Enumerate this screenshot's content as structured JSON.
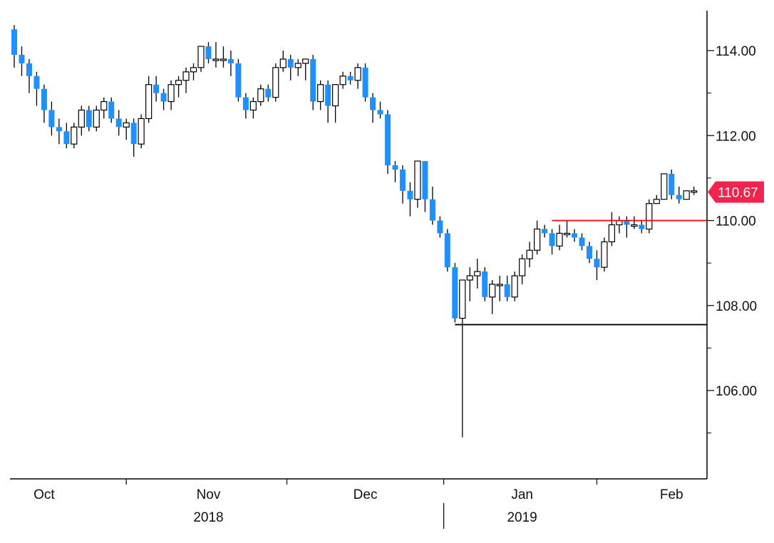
{
  "chart_data": {
    "type": "candlestick",
    "title": "",
    "ylim": [
      104.0,
      115.0
    ],
    "y_ticks": [
      "114.00",
      "112.00",
      "110.00",
      "108.00",
      "106.00"
    ],
    "y_tick_values": [
      114,
      112,
      110,
      108,
      106
    ],
    "x_month_labels": [
      "Oct",
      "Nov",
      "Dec",
      "Jan",
      "Feb"
    ],
    "x_month_positions": [
      4,
      26,
      47,
      68,
      88
    ],
    "x_year_labels": [
      "2018",
      "2019"
    ],
    "x_year_positions": [
      26,
      68
    ],
    "last_price": {
      "label": "110.67",
      "value": 110.67
    },
    "reference_lines": [
      {
        "name": "resistance",
        "value": 110.0,
        "from_index": 72,
        "color": "#e8000b"
      },
      {
        "name": "support",
        "value": 107.55,
        "from_index": 59,
        "color": "#000000"
      }
    ],
    "colors": {
      "up": "#ffffff",
      "down": "#1e90ff",
      "wick": "#000000",
      "last_price_bg": "#f0244d"
    },
    "candles": [
      [
        114.5,
        114.6,
        113.6,
        113.9
      ],
      [
        113.9,
        114.1,
        113.4,
        113.7
      ],
      [
        113.7,
        113.8,
        113.0,
        113.4
      ],
      [
        113.4,
        113.5,
        112.7,
        113.1
      ],
      [
        113.1,
        113.2,
        112.3,
        112.6
      ],
      [
        112.6,
        112.8,
        112.0,
        112.2
      ],
      [
        112.2,
        112.4,
        111.8,
        112.1
      ],
      [
        112.1,
        112.3,
        111.7,
        111.8
      ],
      [
        111.8,
        112.3,
        111.7,
        112.2
      ],
      [
        112.2,
        112.7,
        112.0,
        112.6
      ],
      [
        112.6,
        112.7,
        112.1,
        112.2
      ],
      [
        112.2,
        112.7,
        112.1,
        112.6
      ],
      [
        112.6,
        112.9,
        112.4,
        112.8
      ],
      [
        112.8,
        112.9,
        112.3,
        112.4
      ],
      [
        112.4,
        112.6,
        112.0,
        112.2
      ],
      [
        112.2,
        112.4,
        111.9,
        112.3
      ],
      [
        112.3,
        112.4,
        111.5,
        111.8
      ],
      [
        111.8,
        112.5,
        111.7,
        112.4
      ],
      [
        112.4,
        113.4,
        112.3,
        113.2
      ],
      [
        113.2,
        113.4,
        112.8,
        113.0
      ],
      [
        113.0,
        113.1,
        112.6,
        112.8
      ],
      [
        112.8,
        113.3,
        112.6,
        113.2
      ],
      [
        113.2,
        113.4,
        112.9,
        113.3
      ],
      [
        113.3,
        113.6,
        113.0,
        113.5
      ],
      [
        113.5,
        113.7,
        113.3,
        113.6
      ],
      [
        113.6,
        114.1,
        113.5,
        114.1
      ],
      [
        114.1,
        114.2,
        113.7,
        113.8
      ],
      [
        113.8,
        114.2,
        113.6,
        113.8
      ],
      [
        113.8,
        114.1,
        113.6,
        113.8
      ],
      [
        113.8,
        114.0,
        113.4,
        113.7
      ],
      [
        113.7,
        113.8,
        112.8,
        112.9
      ],
      [
        112.9,
        113.0,
        112.4,
        112.6
      ],
      [
        112.6,
        112.9,
        112.4,
        112.8
      ],
      [
        112.8,
        113.2,
        112.7,
        113.1
      ],
      [
        113.1,
        113.2,
        112.8,
        112.9
      ],
      [
        112.9,
        113.7,
        112.8,
        113.6
      ],
      [
        113.6,
        114.0,
        113.5,
        113.8
      ],
      [
        113.8,
        113.9,
        113.3,
        113.6
      ],
      [
        113.6,
        113.8,
        113.4,
        113.7
      ],
      [
        113.7,
        113.8,
        113.3,
        113.8
      ],
      [
        113.8,
        113.9,
        112.6,
        112.8
      ],
      [
        112.8,
        113.3,
        112.6,
        113.2
      ],
      [
        113.2,
        113.3,
        112.3,
        112.7
      ],
      [
        112.7,
        113.2,
        112.3,
        113.2
      ],
      [
        113.2,
        113.5,
        113.1,
        113.4
      ],
      [
        113.4,
        113.5,
        113.2,
        113.3
      ],
      [
        113.3,
        113.7,
        113.1,
        113.6
      ],
      [
        113.6,
        113.7,
        112.8,
        112.9
      ],
      [
        112.9,
        113.0,
        112.3,
        112.6
      ],
      [
        112.6,
        112.8,
        112.4,
        112.5
      ],
      [
        112.5,
        112.6,
        111.1,
        111.3
      ],
      [
        111.3,
        111.4,
        110.9,
        111.2
      ],
      [
        111.2,
        111.3,
        110.4,
        110.7
      ],
      [
        110.7,
        110.9,
        110.1,
        110.5
      ],
      [
        110.5,
        111.4,
        110.3,
        111.4
      ],
      [
        111.4,
        111.4,
        110.2,
        110.5
      ],
      [
        110.5,
        110.8,
        109.9,
        110.0
      ],
      [
        110.0,
        110.1,
        109.6,
        109.7
      ],
      [
        109.7,
        109.8,
        108.8,
        108.9
      ],
      [
        108.9,
        109.0,
        107.6,
        107.7
      ],
      [
        107.7,
        108.6,
        104.9,
        108.6
      ],
      [
        108.6,
        108.9,
        108.1,
        108.7
      ],
      [
        108.7,
        109.1,
        108.4,
        108.8
      ],
      [
        108.8,
        108.9,
        108.1,
        108.2
      ],
      [
        108.2,
        108.6,
        107.8,
        108.5
      ],
      [
        108.5,
        108.7,
        108.1,
        108.5
      ],
      [
        108.5,
        108.7,
        108.1,
        108.2
      ],
      [
        108.2,
        108.8,
        108.1,
        108.7
      ],
      [
        108.7,
        109.2,
        108.5,
        109.1
      ],
      [
        109.1,
        109.5,
        108.9,
        109.3
      ],
      [
        109.3,
        110.0,
        109.2,
        109.8
      ],
      [
        109.8,
        109.9,
        109.6,
        109.7
      ],
      [
        109.7,
        109.8,
        109.2,
        109.4
      ],
      [
        109.4,
        109.9,
        109.3,
        109.7
      ],
      [
        109.7,
        110.0,
        109.6,
        109.7
      ],
      [
        109.7,
        109.8,
        109.5,
        109.6
      ],
      [
        109.6,
        109.7,
        109.3,
        109.4
      ],
      [
        109.4,
        109.5,
        109.0,
        109.1
      ],
      [
        109.1,
        109.3,
        108.6,
        108.9
      ],
      [
        108.9,
        109.6,
        108.8,
        109.5
      ],
      [
        109.5,
        110.2,
        109.4,
        109.9
      ],
      [
        109.9,
        110.1,
        109.7,
        110.0
      ],
      [
        110.0,
        110.1,
        109.6,
        109.9
      ],
      [
        109.9,
        110.1,
        109.8,
        109.9
      ],
      [
        109.9,
        110.0,
        109.7,
        109.8
      ],
      [
        109.8,
        110.5,
        109.7,
        110.4
      ],
      [
        110.4,
        110.6,
        110.4,
        110.5
      ],
      [
        110.5,
        111.1,
        110.5,
        111.1
      ],
      [
        111.1,
        111.2,
        110.5,
        110.6
      ],
      [
        110.6,
        110.8,
        110.4,
        110.5
      ],
      [
        110.5,
        110.7,
        110.5,
        110.7
      ],
      [
        110.7,
        110.8,
        110.6,
        110.7
      ]
    ]
  }
}
